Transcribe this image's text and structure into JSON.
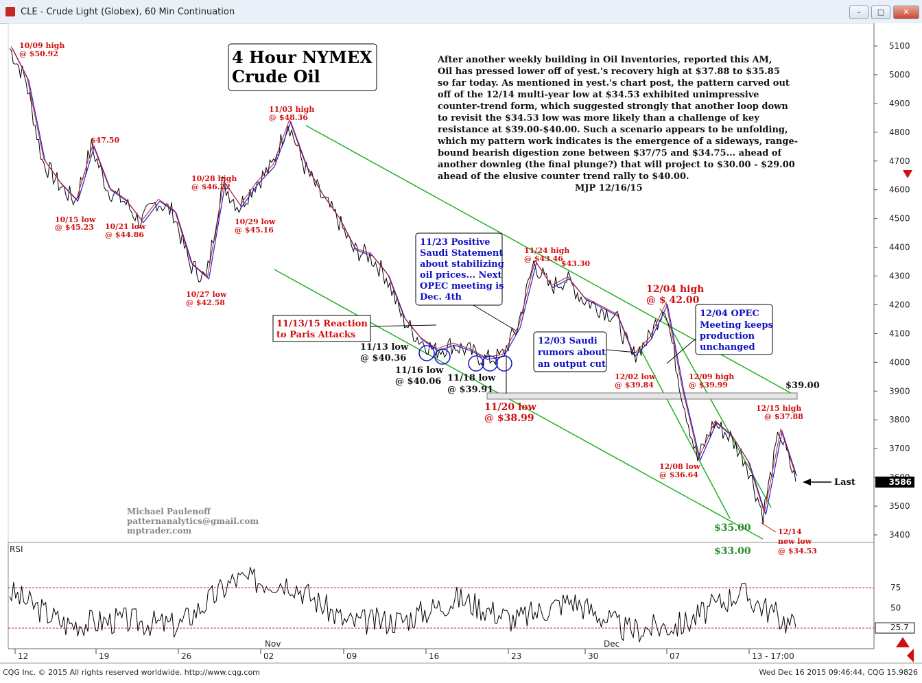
{
  "window": {
    "title": "CLE - Crude Light (Globex), 60 Min Continuation",
    "controls": [
      "minimize",
      "maximize",
      "close"
    ]
  },
  "chart_title": [
    "4 Hour NYMEX",
    "Crude Oil"
  ],
  "commentary": [
    "After another weekly building in Oil Inventories, reported this AM,",
    "Oil has pressed lower off of yest.'s recovery high at $37.88 to $35.85",
    "so far today. As mentioned in yest.'s chart post, the pattern carved out",
    "off of the 12/14 multi-year low at $34.53 exhibited unimpressive",
    "counter-trend form, which suggested strongly that another loop down",
    "to revisit the $34.53 low was more likely than a challenge of key",
    "resistance at $39.00-$40.00. Such a scenario appears to be unfolding,",
    "which my pattern work indicates is the emergence of a sideways, range-",
    "bound bearish digestion zone between $37/75 and $34.75... ahead of",
    "another downleg (the final plunge?) that will project to $30.00 - $29.00",
    "ahead of the elusive counter trend rally to $40.00."
  ],
  "signature": "MJP 12/16/15",
  "credits": [
    "Michael Paulenoff",
    "patternanalytics@gmail.com",
    "mptrader.com"
  ],
  "annotations": {
    "h1009": [
      "10/09 high",
      "@ $50.92"
    ],
    "l1015": [
      "10/15 low",
      "@ $45.23"
    ],
    "p4750": "$47.50",
    "l1021": [
      "10/21 low",
      "@ $44.86"
    ],
    "l1027": [
      "10/27 low",
      "@ $42.58"
    ],
    "h1028": [
      "10/28 high",
      "@ $46.22"
    ],
    "l1029": [
      "10/29 low",
      "@ $45.16"
    ],
    "h1103": [
      "11/03 high",
      "@ $48.36"
    ],
    "box1113": [
      "11/13/15 Reaction",
      "to Paris Attacks"
    ],
    "l1113": [
      "11/13 low",
      "@ $40.36"
    ],
    "l1116": [
      "11/16 low",
      "@ $40.06"
    ],
    "l1118": [
      "11/18 low",
      "@ $39.91"
    ],
    "l1120": [
      "11/20 low",
      "@ $38.99"
    ],
    "box1123": [
      "11/23 Positive",
      "Saudi Statement",
      "about stabilizing",
      "oil prices... Next",
      "OPEC meeting is",
      "Dec. 4th"
    ],
    "h1124": [
      "11/24 high",
      "@ $43.46"
    ],
    "p4330": "$43.30",
    "box1203": [
      "12/03 Saudi",
      "rumors about",
      "an output cut"
    ],
    "l1202": [
      "12/02 low",
      "@ $39.84"
    ],
    "h1204": [
      "12/04 high",
      "@ $ 42.00"
    ],
    "box1204": [
      "12/04 OPEC",
      "Meeting keeps",
      "production",
      "unchanged"
    ],
    "h1209": [
      "12/09 high",
      "@ $39.99"
    ],
    "l1208": [
      "12/08 low",
      "@ $36.64"
    ],
    "h1215": [
      "12/15 high",
      "@ $37.88"
    ],
    "l1214": [
      "12/14",
      "new low",
      "@ $34.53"
    ],
    "p3900": "$39.00",
    "p3500": "$35.00",
    "p3300": "$33.00",
    "last": "Last"
  },
  "indicator_label": "RSI",
  "footer": {
    "left": "CQG Inc. © 2015 All rights reserved worldwide. http://www.cqg.com",
    "right": "Wed Dec 16 2015 09:46:44, CQG 15.9826"
  },
  "chart_data": {
    "type": "line",
    "title": "4 Hour NYMEX Crude Oil",
    "instrument": "CLE - Crude Light (Globex), 60 Min Continuation",
    "price_axis": {
      "ylim": [
        3300,
        5160
      ],
      "ticks": [
        3400,
        3500,
        "3600",
        3700,
        3800,
        3900,
        4000,
        4100,
        4200,
        4300,
        4400,
        4500,
        4600,
        4700,
        4800,
        4900,
        5000,
        5100
      ]
    },
    "time_axis": {
      "ticks": [
        "12",
        "19",
        "26",
        "02",
        "09",
        "16",
        "23",
        "30",
        "07",
        "13 - 17:00"
      ],
      "months": [
        "Nov",
        "Dec"
      ]
    },
    "last_value": "3586",
    "series": [
      {
        "name": "",
        "x": [
          "10/09",
          "10/12",
          "10/13",
          "10/14",
          "10/15",
          "10/16",
          "10/19",
          "10/20",
          "10/21",
          "10/22",
          "10/23",
          "10/26",
          "10/27",
          "10/28",
          "10/29",
          "10/30",
          "11/02",
          "11/03",
          "11/04",
          "11/05",
          "11/06",
          "11/09",
          "11/10",
          "11/11",
          "11/12",
          "11/13",
          "11/16",
          "11/17",
          "11/18",
          "11/19",
          "11/20",
          "11/23",
          "11/24",
          "11/25",
          "11/26",
          "11/27",
          "11/30",
          "12/01",
          "12/02",
          "12/03",
          "12/04",
          "12/07",
          "12/08",
          "12/09",
          "12/10",
          "12/11",
          "12/14",
          "12/15",
          "12/16"
        ],
        "values": [
          5092,
          4980,
          4700,
          4620,
          4560,
          4750,
          4600,
          4560,
          4486,
          4560,
          4520,
          4340,
          4290,
          4622,
          4540,
          4620,
          4680,
          4836,
          4680,
          4580,
          4500,
          4390,
          4370,
          4300,
          4150,
          4080,
          4040,
          4060,
          4040,
          4010,
          4020,
          4120,
          4346,
          4260,
          4290,
          4220,
          4190,
          4160,
          4020,
          4080,
          4200,
          3900,
          3660,
          3790,
          3740,
          3650,
          3470,
          3760,
          3585
        ]
      }
    ],
    "rsi": {
      "levels": [
        75,
        50,
        "25.7"
      ],
      "x": [
        "10/09",
        "10/15",
        "10/21",
        "10/27",
        "10/28",
        "11/03",
        "11/13",
        "11/20",
        "11/24",
        "12/02",
        "12/04",
        "12/08",
        "12/14",
        "12/15",
        "12/16"
      ],
      "values": [
        70,
        30,
        35,
        28,
        85,
        82,
        32,
        35,
        62,
        35,
        60,
        22,
        30,
        70,
        26
      ]
    }
  }
}
